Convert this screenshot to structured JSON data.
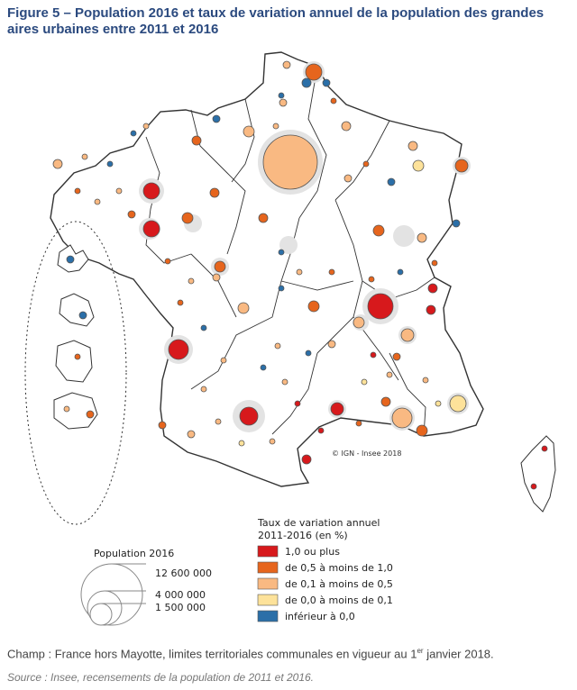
{
  "figure": {
    "title": "Figure 5 – Population 2016 et taux de variation annuel de la population des grandes aires urbaines entre 2011 et 2016"
  },
  "legend_rate": {
    "title_line1": "Taux de variation annuel",
    "title_line2": "2011-2016 (en %)",
    "items": [
      {
        "label": "1,0 ou plus",
        "color": "#d7191c"
      },
      {
        "label": "de 0,5 à moins de 1,0",
        "color": "#e6651d"
      },
      {
        "label": "de 0,1 à moins de 0,5",
        "color": "#f9b982"
      },
      {
        "label": "de 0,0 à moins de 0,1",
        "color": "#fde29a"
      },
      {
        "label": "inférieur à 0,0",
        "color": "#2b6fa8"
      }
    ]
  },
  "legend_population": {
    "title": "Population 2016",
    "values": [
      "12 600 000",
      "4 000 000",
      "1 500 000"
    ]
  },
  "credit": "© IGN - Insee 2018",
  "footer": {
    "champ_prefix": "Champ : France hors Mayotte, limites territoriales communales en vigueur au 1",
    "champ_sup": "er",
    "champ_suffix": " janvier 2018.",
    "source": "Source : Insee, recensements de la population de 2011 et 2016."
  },
  "colors": {
    "title": "#2b4a7f",
    "land": "#ffffff",
    "border": "#333333",
    "halo": "#e3e3e3"
  }
}
